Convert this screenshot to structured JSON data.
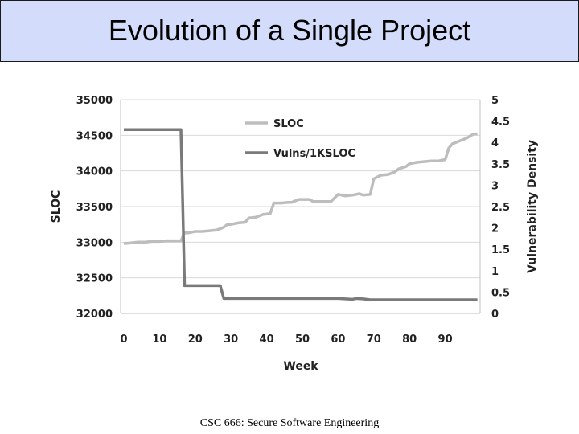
{
  "slide": {
    "title": "Evolution of a Single Project",
    "footer": "CSC 666: Secure Software Engineering"
  },
  "chart_data": {
    "type": "line",
    "xlabel": "Week",
    "ylabel": "SLOC",
    "y2label": "Vulnerability Density",
    "xlim": [
      0,
      100
    ],
    "x_ticks": [
      0,
      10,
      20,
      30,
      40,
      50,
      60,
      70,
      80,
      90
    ],
    "ylim": [
      32000,
      35000
    ],
    "y_ticks": [
      32000,
      32500,
      33000,
      33500,
      34000,
      34500,
      35000
    ],
    "y2lim": [
      0,
      5
    ],
    "y2_ticks": [
      "0",
      "0.5",
      "1",
      "1.5",
      "2",
      "2.5",
      "3",
      "3.5",
      "4",
      "4.5",
      "5"
    ],
    "grid": "horizontal",
    "legend": "top-center",
    "series": [
      {
        "name": "SLOC",
        "axis": "left",
        "color": "#bdbdbd",
        "x": [
          0,
          2,
          4,
          6,
          8,
          10,
          12,
          14,
          16,
          17,
          18,
          20,
          22,
          24,
          26,
          28,
          29,
          30,
          32,
          34,
          35,
          37,
          39,
          41,
          42,
          44,
          46,
          47,
          49,
          51,
          52,
          53,
          55,
          57,
          58,
          60,
          62,
          64,
          66,
          67,
          69,
          70,
          72,
          74,
          76,
          77,
          79,
          80,
          82,
          84,
          86,
          88,
          90,
          91,
          92,
          94,
          96,
          98,
          99
        ],
        "y": [
          32980,
          32990,
          33000,
          33000,
          33010,
          33010,
          33020,
          33020,
          33020,
          33130,
          33130,
          33150,
          33150,
          33160,
          33170,
          33210,
          33250,
          33250,
          33270,
          33280,
          33340,
          33350,
          33390,
          33400,
          33550,
          33550,
          33560,
          33560,
          33600,
          33600,
          33600,
          33570,
          33570,
          33570,
          33570,
          33670,
          33650,
          33660,
          33680,
          33660,
          33670,
          33890,
          33940,
          33950,
          33990,
          34030,
          34060,
          34100,
          34120,
          34130,
          34140,
          34140,
          34160,
          34320,
          34380,
          34420,
          34460,
          34520,
          34520
        ]
      },
      {
        "name": "Vulns/1KSLOC",
        "axis": "right",
        "color": "#7a7a7a",
        "x": [
          0,
          16,
          16.5,
          17,
          27,
          28,
          40,
          60,
          64,
          65,
          67,
          69,
          80,
          99
        ],
        "y": [
          4.3,
          4.3,
          2.5,
          0.65,
          0.65,
          0.35,
          0.35,
          0.35,
          0.33,
          0.35,
          0.34,
          0.32,
          0.32,
          0.32
        ]
      }
    ]
  }
}
